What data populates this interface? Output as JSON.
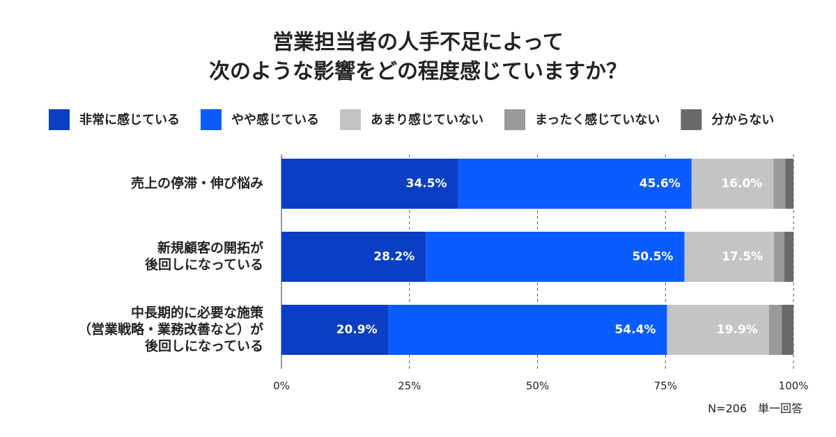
{
  "chart_data": {
    "type": "stacked-bar-horizontal",
    "title": [
      "営業担当者の人手不足によって",
      "次のような影響をどの程度感じていますか？"
    ],
    "categories": [
      [
        "売上の停滞・伸び悩み"
      ],
      [
        "新規顧客の開拓が",
        "後回しになっている"
      ],
      [
        "中長期的に必要な施策",
        "（営業戦略・業務改善など）が",
        "後回しになっている"
      ]
    ],
    "series": [
      {
        "name": "非常に感じている",
        "color": "#0a3fc4",
        "values": [
          34.5,
          28.2,
          20.9
        ],
        "value_labels": [
          "34.5%",
          "28.2%",
          "20.9%"
        ]
      },
      {
        "name": "やや感じている",
        "color": "#0a5cff",
        "values": [
          45.6,
          50.5,
          54.4
        ],
        "value_labels": [
          "45.6%",
          "50.5%",
          "54.4%"
        ]
      },
      {
        "name": "あまり感じていない",
        "color": "#c4c4c6",
        "values": [
          16.0,
          17.5,
          19.9
        ],
        "value_labels": [
          "16.0%",
          "17.5%",
          "19.9%"
        ]
      },
      {
        "name": "まったく感じていない",
        "color": "#9a9a9a",
        "values": [
          2.3,
          2.0,
          2.5
        ]
      },
      {
        "name": "分からない",
        "color": "#6a6a6a",
        "values": [
          1.6,
          1.8,
          2.3
        ]
      }
    ],
    "xlim": [
      0,
      100
    ],
    "xticks": [
      {
        "value": 0,
        "label": "0%"
      },
      {
        "value": 25,
        "label": "25%"
      },
      {
        "value": 50,
        "label": "50%"
      },
      {
        "value": 75,
        "label": "75%"
      },
      {
        "value": 100,
        "label": "100%"
      }
    ],
    "grid": true,
    "note": "N=206　単一回答"
  }
}
